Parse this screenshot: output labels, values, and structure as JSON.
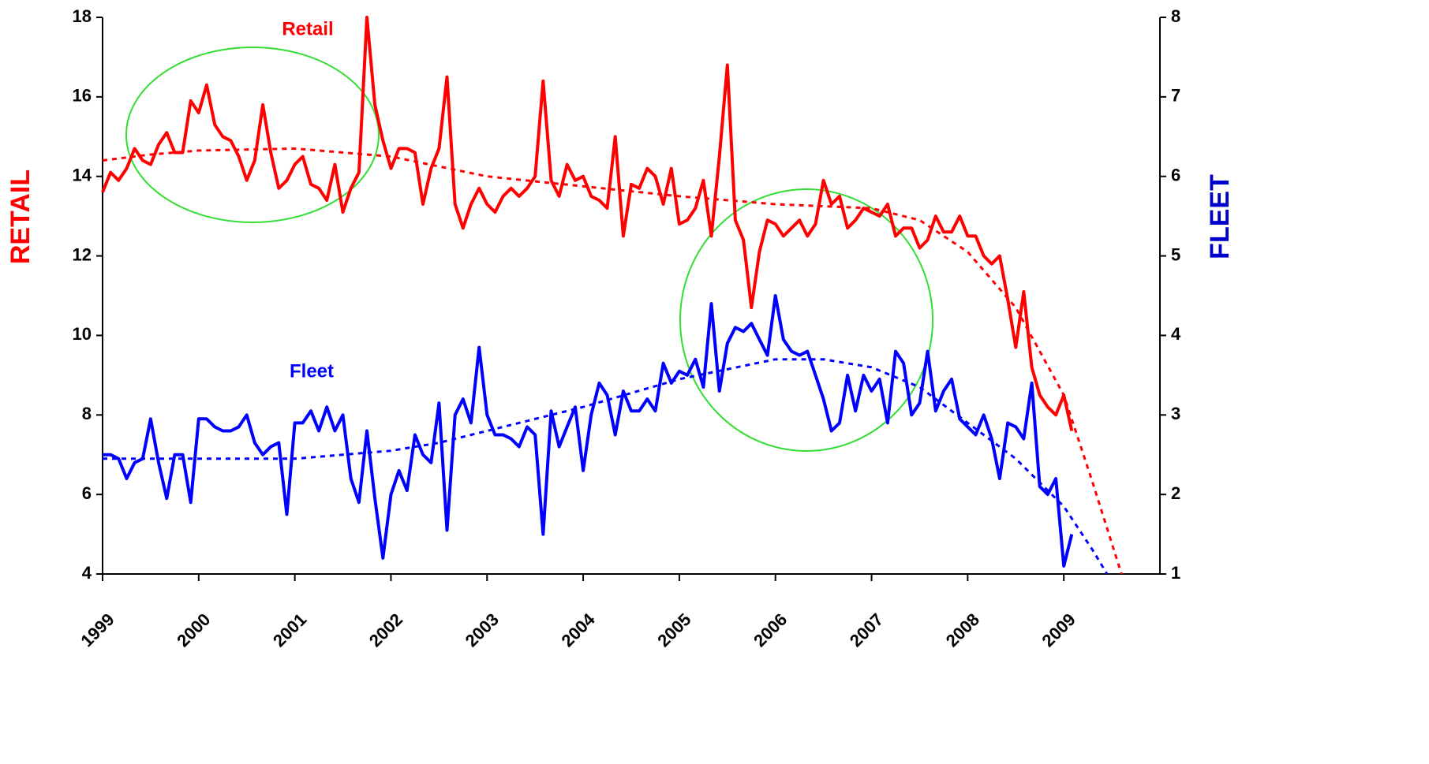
{
  "chart_data": {
    "type": "line",
    "ylabel": "RETAIL",
    "y2label": "FLEET",
    "xlim": [
      1999,
      2010
    ],
    "xticks": [
      1999,
      2000,
      2001,
      2002,
      2003,
      2004,
      2005,
      2006,
      2007,
      2008,
      2009
    ],
    "ylim": [
      4,
      18
    ],
    "yticks": [
      4,
      6,
      8,
      10,
      12,
      14,
      16,
      18
    ],
    "y2lim": [
      1,
      8
    ],
    "y2ticks": [
      1,
      2,
      3,
      4,
      5,
      6,
      7,
      8
    ],
    "x": [
      1999,
      1999.083,
      1999.167,
      1999.25,
      1999.333,
      1999.417,
      1999.5,
      1999.583,
      1999.667,
      1999.75,
      1999.833,
      1999.917,
      2000,
      2000.083,
      2000.167,
      2000.25,
      2000.333,
      2000.417,
      2000.5,
      2000.583,
      2000.667,
      2000.75,
      2000.833,
      2000.917,
      2001,
      2001.083,
      2001.167,
      2001.25,
      2001.333,
      2001.417,
      2001.5,
      2001.583,
      2001.667,
      2001.75,
      2001.833,
      2001.917,
      2002,
      2002.083,
      2002.167,
      2002.25,
      2002.333,
      2002.417,
      2002.5,
      2002.583,
      2002.667,
      2002.75,
      2002.833,
      2002.917,
      2003,
      2003.083,
      2003.167,
      2003.25,
      2003.333,
      2003.417,
      2003.5,
      2003.583,
      2003.667,
      2003.75,
      2003.833,
      2003.917,
      2004,
      2004.083,
      2004.167,
      2004.25,
      2004.333,
      2004.417,
      2004.5,
      2004.583,
      2004.667,
      2004.75,
      2004.833,
      2004.917,
      2005,
      2005.083,
      2005.167,
      2005.25,
      2005.333,
      2005.417,
      2005.5,
      2005.583,
      2005.667,
      2005.75,
      2005.833,
      2005.917,
      2006,
      2006.083,
      2006.167,
      2006.25,
      2006.333,
      2006.417,
      2006.5,
      2006.583,
      2006.667,
      2006.75,
      2006.833,
      2006.917,
      2007,
      2007.083,
      2007.167,
      2007.25,
      2007.333,
      2007.417,
      2007.5,
      2007.583,
      2007.667,
      2007.75,
      2007.833,
      2007.917,
      2008,
      2008.083,
      2008.167,
      2008.25,
      2008.333,
      2008.417,
      2008.5,
      2008.583,
      2008.667,
      2008.75,
      2008.833,
      2008.917,
      2009,
      2009.083
    ],
    "series": [
      {
        "name": "Retail",
        "color": "#ff0000",
        "axis": "y",
        "style": "solid",
        "values": [
          13.6,
          14.1,
          13.9,
          14.2,
          14.7,
          14.4,
          14.3,
          14.8,
          15.1,
          14.6,
          14.6,
          15.9,
          15.6,
          16.3,
          15.3,
          15.0,
          14.9,
          14.5,
          13.9,
          14.4,
          15.8,
          14.6,
          13.7,
          13.9,
          14.3,
          14.5,
          13.8,
          13.7,
          13.4,
          14.3,
          13.1,
          13.7,
          14.1,
          18.0,
          15.8,
          14.9,
          14.2,
          14.7,
          14.7,
          14.6,
          13.3,
          14.2,
          14.7,
          16.5,
          13.3,
          12.7,
          13.3,
          13.7,
          13.3,
          13.1,
          13.5,
          13.7,
          13.5,
          13.7,
          14.0,
          16.4,
          13.9,
          13.5,
          14.3,
          13.9,
          14.0,
          13.5,
          13.4,
          13.2,
          15.0,
          12.5,
          13.8,
          13.7,
          14.2,
          14.0,
          13.3,
          14.2,
          12.8,
          12.9,
          13.2,
          13.9,
          12.5,
          14.5,
          16.8,
          12.9,
          12.4,
          10.7,
          12.1,
          12.9,
          12.8,
          12.5,
          12.7,
          12.9,
          12.5,
          12.8,
          13.9,
          13.3,
          13.5,
          12.7,
          12.9,
          13.2,
          13.1,
          13.0,
          13.3,
          12.5,
          12.7,
          12.7,
          12.2,
          12.4,
          13.0,
          12.6,
          12.6,
          13.0,
          12.5,
          12.5,
          12.0,
          11.8,
          12.0,
          10.9,
          9.7,
          11.1,
          9.2,
          8.5,
          8.2,
          8.0,
          8.5,
          7.6
        ]
      },
      {
        "name": "Fleet",
        "color": "#0000ff",
        "axis": "y2",
        "style": "solid",
        "values": [
          2.5,
          2.5,
          2.45,
          2.2,
          2.4,
          2.45,
          2.95,
          2.4,
          1.95,
          2.5,
          2.5,
          1.9,
          2.95,
          2.95,
          2.85,
          2.8,
          2.8,
          2.85,
          3.0,
          2.65,
          2.5,
          2.6,
          2.65,
          1.75,
          2.9,
          2.9,
          3.05,
          2.8,
          3.1,
          2.8,
          3.0,
          2.2,
          1.9,
          2.8,
          1.95,
          1.2,
          2.0,
          2.3,
          2.05,
          2.75,
          2.5,
          2.4,
          3.15,
          1.55,
          3.0,
          3.2,
          2.9,
          3.85,
          3.0,
          2.75,
          2.75,
          2.7,
          2.6,
          2.85,
          2.75,
          1.5,
          3.05,
          2.6,
          2.85,
          3.1,
          2.3,
          3.0,
          3.4,
          3.25,
          2.75,
          3.3,
          3.05,
          3.05,
          3.2,
          3.05,
          3.65,
          3.4,
          3.55,
          3.5,
          3.7,
          3.35,
          4.4,
          3.3,
          3.9,
          4.1,
          4.05,
          4.15,
          3.95,
          3.75,
          4.5,
          3.95,
          3.8,
          3.75,
          3.8,
          3.5,
          3.2,
          2.8,
          2.9,
          3.5,
          3.05,
          3.5,
          3.3,
          3.45,
          2.9,
          3.8,
          3.65,
          3.0,
          3.15,
          3.8,
          3.05,
          3.3,
          3.45,
          2.95,
          2.85,
          2.75,
          3.0,
          2.7,
          2.2,
          2.9,
          2.85,
          2.7,
          3.4,
          2.1,
          2.0,
          2.2,
          1.1,
          1.5
        ]
      },
      {
        "color": "#ff0000",
        "axis": "y",
        "style": "dotted",
        "x": [
          1999,
          1999.5,
          2000,
          2001,
          2002,
          2003,
          2004,
          2005,
          2006,
          2007,
          2007.5,
          2008,
          2008.5,
          2009,
          2009.3,
          2009.6
        ],
        "values": [
          14.4,
          14.55,
          14.65,
          14.7,
          14.5,
          14.0,
          13.75,
          13.5,
          13.3,
          13.2,
          12.9,
          12.1,
          10.7,
          8.5,
          6.3,
          4.0
        ]
      },
      {
        "color": "#0000ff",
        "axis": "y2",
        "style": "dotted",
        "x": [
          1999,
          2000,
          2001,
          2002,
          2002.5,
          2003,
          2004,
          2005,
          2006,
          2006.5,
          2007,
          2007.5,
          2008,
          2008.5,
          2009,
          2009.3,
          2009.45
        ],
        "values": [
          2.45,
          2.45,
          2.45,
          2.55,
          2.65,
          2.8,
          3.1,
          3.45,
          3.7,
          3.7,
          3.6,
          3.35,
          2.9,
          2.45,
          1.85,
          1.3,
          1.0
        ]
      }
    ]
  }
}
